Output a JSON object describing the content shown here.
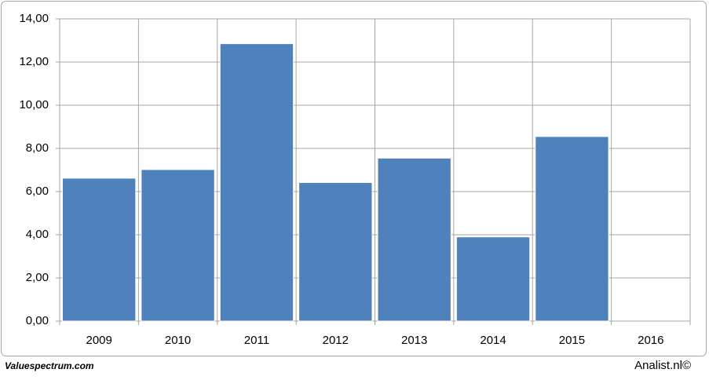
{
  "chart_data": {
    "type": "bar",
    "categories": [
      "2009",
      "2010",
      "2011",
      "2012",
      "2013",
      "2014",
      "2015",
      "2016"
    ],
    "values": [
      6.62,
      7.02,
      12.85,
      6.42,
      7.55,
      3.9,
      8.55,
      null
    ],
    "color": "#4f81bd",
    "ylim": [
      0,
      14
    ],
    "yticks": [
      {
        "value": 0,
        "label": "0,00"
      },
      {
        "value": 2,
        "label": "2,00"
      },
      {
        "value": 4,
        "label": "4,00"
      },
      {
        "value": 6,
        "label": "6,00"
      },
      {
        "value": 8,
        "label": "8,00"
      },
      {
        "value": 10,
        "label": "10,00"
      },
      {
        "value": 12,
        "label": "12,00"
      },
      {
        "value": 14,
        "label": "14,00"
      }
    ],
    "grid": true,
    "source_left": "Valuespectrum.com",
    "source_right": "Analist.nl©"
  }
}
